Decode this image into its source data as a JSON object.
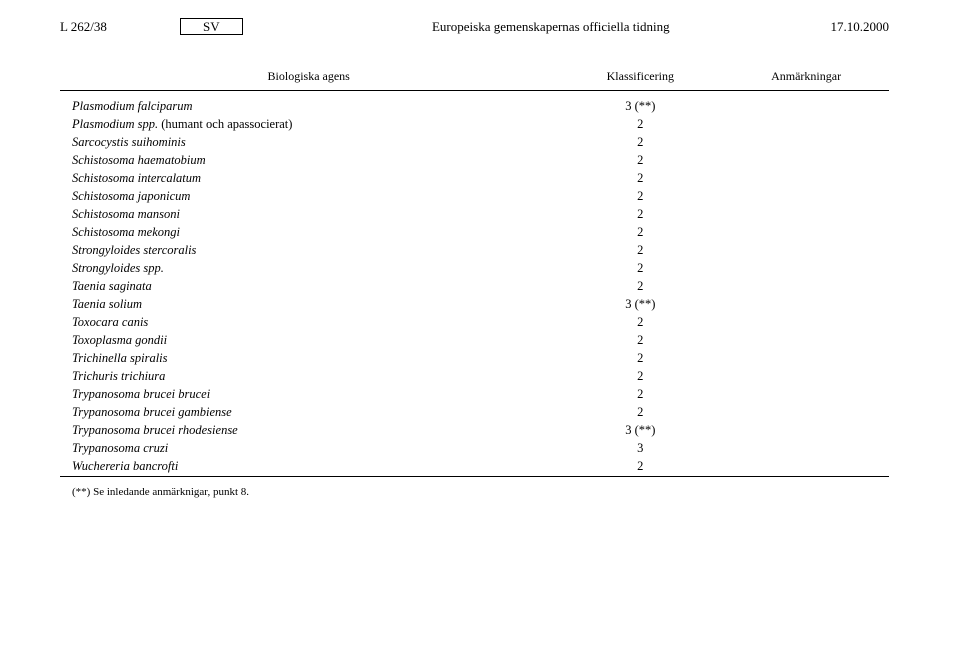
{
  "header": {
    "page_ref": "L 262/38",
    "lang": "SV",
    "journal_title": "Europeiska gemenskapernas officiella tidning",
    "date": "17.10.2000"
  },
  "table": {
    "columns": {
      "agent": "Biologiska agens",
      "class": "Klassificering",
      "remarks": "Anmärkningar"
    },
    "rows": [
      {
        "agent": "Plasmodium falciparum",
        "class": "3 (**)",
        "remarks": ""
      },
      {
        "agent": "Plasmodium spp. ",
        "agent_suffix_upright": "(humant och apassocierat)",
        "class": "2",
        "remarks": ""
      },
      {
        "agent": "Sarcocystis suihominis",
        "class": "2",
        "remarks": ""
      },
      {
        "agent": "Schistosoma haematobium",
        "class": "2",
        "remarks": ""
      },
      {
        "agent": "Schistosoma intercalatum",
        "class": "2",
        "remarks": ""
      },
      {
        "agent": "Schistosoma japonicum",
        "class": "2",
        "remarks": ""
      },
      {
        "agent": "Schistosoma mansoni",
        "class": "2",
        "remarks": ""
      },
      {
        "agent": "Schistosoma mekongi",
        "class": "2",
        "remarks": ""
      },
      {
        "agent": "Strongyloides stercoralis",
        "class": "2",
        "remarks": ""
      },
      {
        "agent": "Strongyloides spp.",
        "class": "2",
        "remarks": ""
      },
      {
        "agent": "Taenia saginata",
        "class": "2",
        "remarks": ""
      },
      {
        "agent": "Taenia solium",
        "class": "3 (**)",
        "remarks": ""
      },
      {
        "agent": "Toxocara canis",
        "class": "2",
        "remarks": ""
      },
      {
        "agent": "Toxoplasma gondii",
        "class": "2",
        "remarks": ""
      },
      {
        "agent": "Trichinella spiralis",
        "class": "2",
        "remarks": ""
      },
      {
        "agent": "Trichuris trichiura",
        "class": "2",
        "remarks": ""
      },
      {
        "agent": "Trypanosoma brucei brucei",
        "class": "2",
        "remarks": ""
      },
      {
        "agent": "Trypanosoma brucei gambiense",
        "class": "2",
        "remarks": ""
      },
      {
        "agent": "Trypanosoma brucei rhodesiense",
        "class": "3 (**)",
        "remarks": ""
      },
      {
        "agent": "Trypanosoma cruzi",
        "class": "3",
        "remarks": ""
      },
      {
        "agent": "Wuchereria bancrofti",
        "class": "2",
        "remarks": ""
      }
    ],
    "footnote": "(**) Se inledande anmärknigar, punkt 8."
  }
}
